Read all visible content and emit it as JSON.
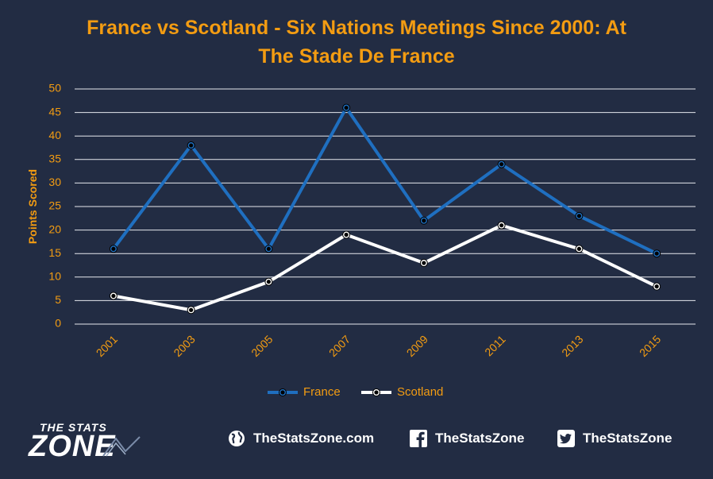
{
  "chart_data": {
    "type": "line",
    "title_line1": "France vs Scotland - Six Nations Meetings Since 2000: At",
    "title_line2": "The Stade De France",
    "ylabel": "Points Scored",
    "xlabel": "",
    "ylim": [
      0,
      50
    ],
    "yticks": [
      0,
      5,
      10,
      15,
      20,
      25,
      30,
      35,
      40,
      45,
      50
    ],
    "categories": [
      "2001",
      "2003",
      "2005",
      "2007",
      "2009",
      "2011",
      "2013",
      "2015"
    ],
    "series": [
      {
        "name": "France",
        "values": [
          16,
          38,
          16,
          46,
          22,
          34,
          23,
          15
        ],
        "color": "#1f6fc0"
      },
      {
        "name": "Scotland",
        "values": [
          6,
          3,
          9,
          19,
          13,
          21,
          16,
          8
        ],
        "color": "#ffffff"
      }
    ],
    "grid": true,
    "legend": "bottom"
  },
  "footer": {
    "logo_top": "THE STATS",
    "logo_main": "ZONE",
    "website": "TheStatsZone.com",
    "facebook": "TheStatsZone",
    "twitter": "TheStatsZone"
  },
  "icons": [
    "globe-icon",
    "facebook-icon",
    "twitter-icon"
  ]
}
